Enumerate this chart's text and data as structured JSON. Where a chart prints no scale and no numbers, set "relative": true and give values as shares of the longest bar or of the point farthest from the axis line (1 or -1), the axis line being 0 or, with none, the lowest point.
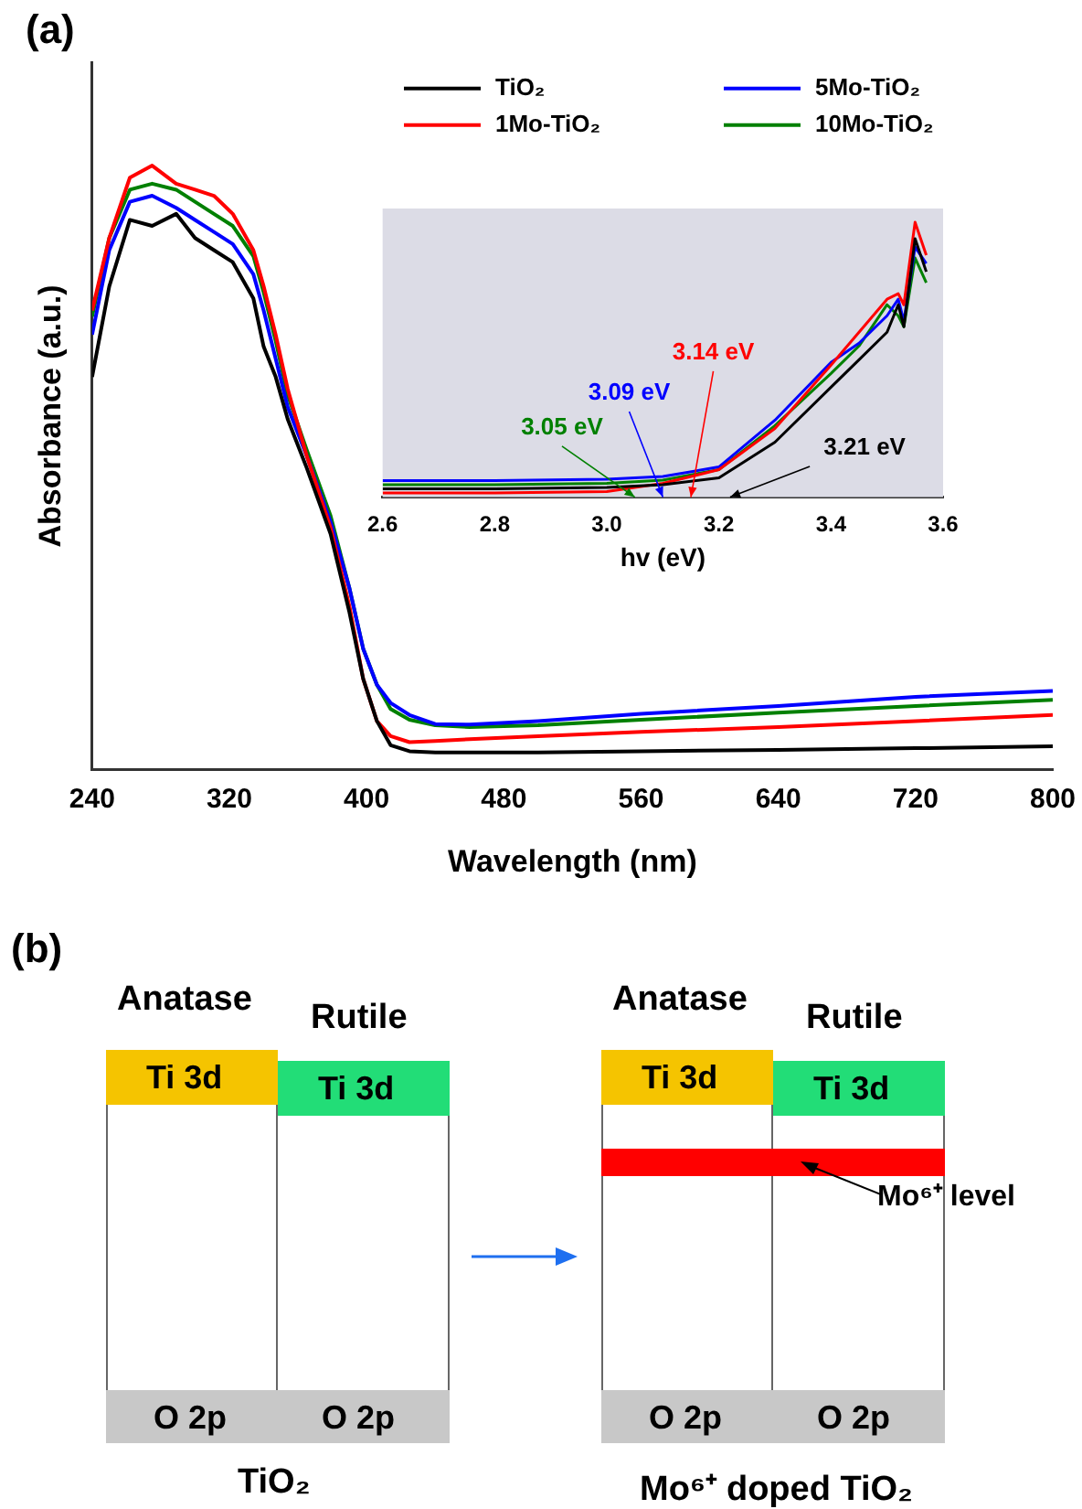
{
  "chart_data": [
    {
      "type": "line",
      "title": "(a)",
      "xlabel": "Wavelength (nm)",
      "ylabel": "Absorbance (a.u.)",
      "relative": true,
      "marker": "none",
      "legend": "top right",
      "x": [
        240,
        250,
        262,
        275,
        289,
        300,
        311,
        322,
        334,
        340,
        347,
        354,
        365,
        379,
        390,
        398,
        406,
        414,
        425,
        440,
        460,
        500,
        560,
        640,
        720,
        800
      ],
      "series": [
        {
          "name": "TiO₂",
          "color": "#000000",
          "values": [
            0.65,
            0.8,
            0.91,
            0.9,
            0.92,
            0.88,
            0.86,
            0.84,
            0.78,
            0.7,
            0.65,
            0.58,
            0.5,
            0.39,
            0.26,
            0.15,
            0.08,
            0.04,
            0.03,
            0.028,
            0.028,
            0.028,
            0.03,
            0.032,
            0.035,
            0.038
          ]
        },
        {
          "name": "1Mo-TiO₂",
          "color": "#ff0000",
          "values": [
            0.76,
            0.88,
            0.98,
            1.0,
            0.97,
            0.96,
            0.95,
            0.92,
            0.86,
            0.8,
            0.72,
            0.63,
            0.52,
            0.4,
            0.27,
            0.15,
            0.08,
            0.055,
            0.045,
            0.047,
            0.05,
            0.055,
            0.062,
            0.07,
            0.08,
            0.09
          ]
        },
        {
          "name": "5Mo-TiO₂",
          "color": "#0000ff",
          "values": [
            0.72,
            0.86,
            0.94,
            0.95,
            0.93,
            0.91,
            0.89,
            0.87,
            0.82,
            0.76,
            0.68,
            0.6,
            0.52,
            0.41,
            0.3,
            0.2,
            0.14,
            0.11,
            0.09,
            0.075,
            0.074,
            0.08,
            0.092,
            0.105,
            0.12,
            0.13
          ]
        },
        {
          "name": "10Mo-TiO₂",
          "color": "#008000",
          "values": [
            0.75,
            0.88,
            0.96,
            0.97,
            0.96,
            0.94,
            0.92,
            0.9,
            0.85,
            0.79,
            0.71,
            0.62,
            0.53,
            0.42,
            0.3,
            0.2,
            0.14,
            0.1,
            0.082,
            0.073,
            0.07,
            0.073,
            0.082,
            0.094,
            0.105,
            0.115
          ]
        }
      ],
      "xlim": [
        240,
        800
      ],
      "xticks": [
        240,
        320,
        400,
        480,
        560,
        640,
        720,
        800
      ]
    },
    {
      "type": "line",
      "xlabel": "hv (eV)",
      "relative": true,
      "marker": "none",
      "x": [
        2.6,
        2.8,
        3.0,
        3.1,
        3.2,
        3.3,
        3.4,
        3.45,
        3.5,
        3.52,
        3.53,
        3.55,
        3.57
      ],
      "series": [
        {
          "color": "#000000",
          "values": [
            0.03,
            0.03,
            0.035,
            0.045,
            0.07,
            0.2,
            0.4,
            0.5,
            0.6,
            0.7,
            0.62,
            0.94,
            0.82
          ]
        },
        {
          "color": "#ff0000",
          "values": [
            0.015,
            0.015,
            0.02,
            0.05,
            0.1,
            0.25,
            0.48,
            0.6,
            0.72,
            0.74,
            0.7,
            1.0,
            0.88
          ]
        },
        {
          "color": "#0000ff",
          "values": [
            0.06,
            0.06,
            0.065,
            0.075,
            0.11,
            0.28,
            0.49,
            0.56,
            0.66,
            0.72,
            0.64,
            0.91,
            0.85
          ]
        },
        {
          "color": "#008000",
          "values": [
            0.045,
            0.045,
            0.05,
            0.062,
            0.1,
            0.26,
            0.45,
            0.55,
            0.7,
            0.66,
            0.62,
            0.87,
            0.78
          ]
        }
      ],
      "xlim": [
        2.6,
        3.6
      ],
      "xticks": [
        2.6,
        2.8,
        {
          "value": 3,
          "label": "3.0"
        },
        3.2,
        3.4,
        3.6
      ],
      "annotations": [
        "3.21 eV",
        "3.14 eV",
        "3.09 eV",
        "3.05 eV"
      ]
    },
    {
      "type": "other",
      "title": "(b)",
      "annotations": [
        "Anatase",
        "Rutile",
        "Ti 3d",
        "Ti 3d",
        "O 2p",
        "O 2p",
        "TiO₂",
        "Anatase",
        "Rutile",
        "Ti 3d",
        "Ti 3d",
        "O 2p",
        "O 2p",
        "Mo⁶⁺ level",
        "Mo⁶⁺ doped TiO₂"
      ]
    }
  ]
}
